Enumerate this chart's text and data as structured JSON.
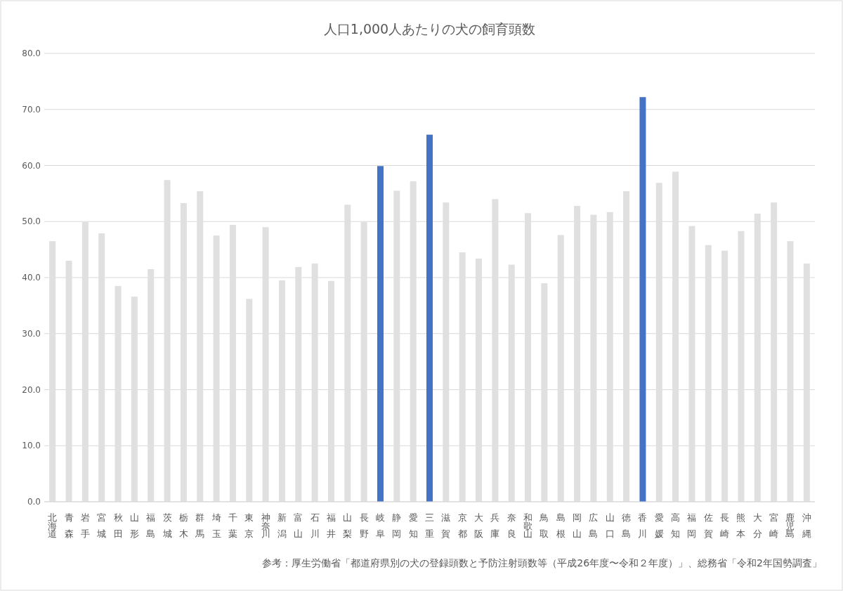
{
  "chart_data": {
    "type": "bar",
    "title": "人口1,000人あたりの犬の飼育頭数",
    "categories": [
      "北海道",
      "青森",
      "岩手",
      "宮城",
      "秋田",
      "山形",
      "福島",
      "茨城",
      "栃木",
      "群馬",
      "埼玉",
      "千葉",
      "東京",
      "神奈川",
      "新潟",
      "富山",
      "石川",
      "福井",
      "山梨",
      "長野",
      "岐阜",
      "静岡",
      "愛知",
      "三重",
      "滋賀",
      "京都",
      "大阪",
      "兵庫",
      "奈良",
      "和歌山",
      "鳥取",
      "島根",
      "岡山",
      "広島",
      "山口",
      "徳島",
      "香川",
      "愛媛",
      "高知",
      "福岡",
      "佐賀",
      "長崎",
      "熊本",
      "大分",
      "宮崎",
      "鹿児島",
      "沖縄"
    ],
    "values": [
      46.5,
      43.0,
      49.9,
      47.9,
      38.5,
      36.6,
      41.5,
      57.4,
      53.3,
      55.4,
      47.5,
      49.4,
      36.2,
      49.0,
      39.5,
      41.9,
      42.5,
      39.4,
      53.0,
      49.9,
      59.9,
      55.5,
      57.2,
      65.5,
      53.4,
      44.5,
      43.4,
      54.0,
      42.3,
      51.5,
      39.0,
      47.6,
      52.8,
      51.2,
      51.7,
      55.4,
      72.2,
      56.9,
      58.9,
      49.2,
      45.8,
      44.8,
      48.3,
      51.4,
      53.4,
      46.5,
      42.5
    ],
    "colors": [
      "#e0e0e0",
      "#e0e0e0",
      "#e0e0e0",
      "#e0e0e0",
      "#e0e0e0",
      "#e0e0e0",
      "#e0e0e0",
      "#e0e0e0",
      "#e0e0e0",
      "#e0e0e0",
      "#e0e0e0",
      "#e0e0e0",
      "#e0e0e0",
      "#e0e0e0",
      "#e0e0e0",
      "#e0e0e0",
      "#e0e0e0",
      "#e0e0e0",
      "#e0e0e0",
      "#e0e0e0",
      "#4472c4",
      "#e0e0e0",
      "#e0e0e0",
      "#4472c4",
      "#e0e0e0",
      "#e0e0e0",
      "#e0e0e0",
      "#e0e0e0",
      "#e0e0e0",
      "#e0e0e0",
      "#e0e0e0",
      "#e0e0e0",
      "#e0e0e0",
      "#e0e0e0",
      "#e0e0e0",
      "#e0e0e0",
      "#4472c4",
      "#e0e0e0",
      "#e0e0e0",
      "#e0e0e0",
      "#e0e0e0",
      "#e0e0e0",
      "#e0e0e0",
      "#e0e0e0",
      "#e0e0e0",
      "#e0e0e0",
      "#e0e0e0"
    ],
    "ylim": [
      0,
      80
    ],
    "yticks": [
      {
        "value": 0,
        "label": "0.0"
      },
      {
        "value": 10,
        "label": "10.0"
      },
      {
        "value": 20,
        "label": "20.0"
      },
      {
        "value": 30,
        "label": "30.0"
      },
      {
        "value": 40,
        "label": "40.0"
      },
      {
        "value": 50,
        "label": "50.0"
      },
      {
        "value": 60,
        "label": "60.0"
      },
      {
        "value": 70,
        "label": "70.0"
      },
      {
        "value": 80,
        "label": "80.0"
      }
    ],
    "grid": "y",
    "annotations": [
      "参考：厚生労働省「都道府県別の犬の登録頭数と予防注射頭数等（平成26年度〜令和２年度）」、総務省「令和2年国勢調査」"
    ]
  }
}
